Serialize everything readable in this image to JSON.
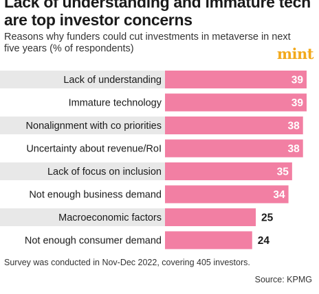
{
  "header": {
    "title": "Lack of understanding and immature tech are top investor concerns",
    "subtitle": "Reasons why funders could cut investments in metaverse in next five years (% of respondents)",
    "brand": "mint"
  },
  "footer": {
    "note": "Survey was conducted in Nov-Dec 2022, covering 405 investors.",
    "source": "Source: KPMG"
  },
  "colors": {
    "bar": "#f27fa3",
    "bar_alt_bg": "#e8e8e8",
    "value_inside": "#ffffff",
    "value_outside": "#1a1a1a"
  },
  "chart_data": {
    "type": "bar",
    "orientation": "horizontal",
    "title": "Lack of understanding and immature tech are top investor concerns",
    "subtitle": "Reasons why funders could cut investments in metaverse in next five years (% of respondents)",
    "categories": [
      "Lack of understanding",
      "Immature technology",
      "Nonalignment with co priorities",
      "Uncertainty about revenue/RoI",
      "Lack of focus on inclusion",
      "Not enough business demand",
      "Macroeconomic factors",
      "Not enough consumer demand"
    ],
    "values": [
      39,
      39,
      38,
      38,
      35,
      34,
      25,
      24
    ],
    "xlim": [
      0,
      39
    ],
    "grid": false,
    "legend": "none"
  }
}
